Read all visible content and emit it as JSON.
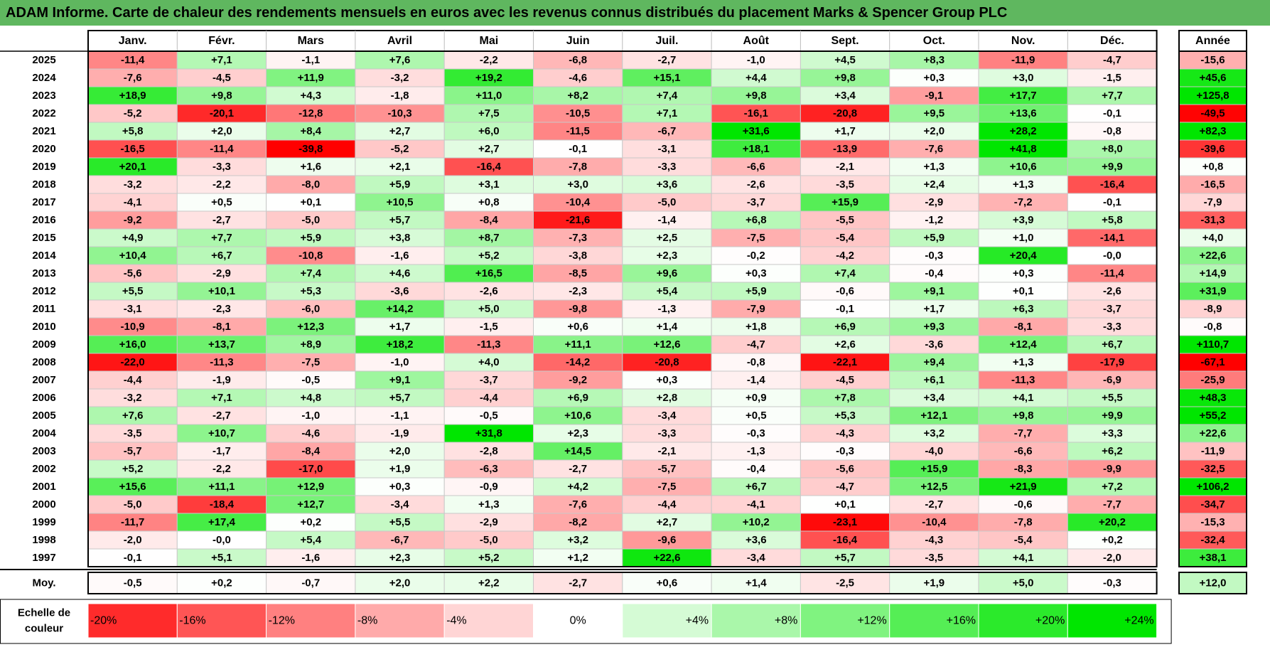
{
  "title": "ADAM Informe. Carte de chaleur des rendements mensuels en euros avec les revenus connus distribués du placement Marks & Spencer Group PLC",
  "chart_data": {
    "type": "heatmap",
    "months": [
      "Janv.",
      "Févr.",
      "Mars",
      "Avril",
      "Mai",
      "Juin",
      "Juil.",
      "Août",
      "Sept.",
      "Oct.",
      "Nov.",
      "Déc."
    ],
    "year_header": "Année",
    "avg_label": "Moy.",
    "rows": [
      {
        "year": "2025",
        "values": [
          "-11,4",
          "+7,1",
          "-1,1",
          "+7,6",
          "-2,2",
          "-6,8",
          "-2,7",
          "-1,0",
          "+4,5",
          "+8,3",
          "-11,9",
          "-4,7"
        ],
        "annual": "-15,6"
      },
      {
        "year": "2024",
        "values": [
          "-7,6",
          "-4,5",
          "+11,9",
          "-3,2",
          "+19,2",
          "-4,6",
          "+15,1",
          "+4,4",
          "+9,8",
          "+0,3",
          "+3,0",
          "-1,5"
        ],
        "annual": "+45,6"
      },
      {
        "year": "2023",
        "values": [
          "+18,9",
          "+9,8",
          "+4,3",
          "-1,8",
          "+11,0",
          "+8,2",
          "+7,4",
          "+9,8",
          "+3,4",
          "-9,1",
          "+17,7",
          "+7,7"
        ],
        "annual": "+125,8"
      },
      {
        "year": "2022",
        "values": [
          "-5,2",
          "-20,1",
          "-12,8",
          "-10,3",
          "+7,5",
          "-10,5",
          "+7,1",
          "-16,1",
          "-20,8",
          "+9,5",
          "+13,6",
          "-0,1"
        ],
        "annual": "-49,5"
      },
      {
        "year": "2021",
        "values": [
          "+5,8",
          "+2,0",
          "+8,4",
          "+2,7",
          "+6,0",
          "-11,5",
          "-6,7",
          "+31,6",
          "+1,7",
          "+2,0",
          "+28,2",
          "-0,8"
        ],
        "annual": "+82,3"
      },
      {
        "year": "2020",
        "values": [
          "-16,5",
          "-11,4",
          "-39,8",
          "-5,2",
          "+2,7",
          "-0,1",
          "-3,1",
          "+18,1",
          "-13,9",
          "-7,6",
          "+41,8",
          "+8,0"
        ],
        "annual": "-39,6"
      },
      {
        "year": "2019",
        "values": [
          "+20,1",
          "-3,3",
          "+1,6",
          "+2,1",
          "-16,4",
          "-7,8",
          "-3,3",
          "-6,6",
          "-2,1",
          "+1,3",
          "+10,6",
          "+9,9"
        ],
        "annual": "+0,8"
      },
      {
        "year": "2018",
        "values": [
          "-3,2",
          "-2,2",
          "-8,0",
          "+5,9",
          "+3,1",
          "+3,0",
          "+3,6",
          "-2,6",
          "-3,5",
          "+2,4",
          "+1,3",
          "-16,4"
        ],
        "annual": "-16,5"
      },
      {
        "year": "2017",
        "values": [
          "-4,1",
          "+0,5",
          "+0,1",
          "+10,5",
          "+0,8",
          "-10,4",
          "-5,0",
          "-3,7",
          "+15,9",
          "-2,9",
          "-7,2",
          "-0,1"
        ],
        "annual": "-7,9"
      },
      {
        "year": "2016",
        "values": [
          "-9,2",
          "-2,7",
          "-5,0",
          "+5,7",
          "-8,4",
          "-21,6",
          "-1,4",
          "+6,8",
          "-5,5",
          "-1,2",
          "+3,9",
          "+5,8"
        ],
        "annual": "-31,3"
      },
      {
        "year": "2015",
        "values": [
          "+4,9",
          "+7,7",
          "+5,9",
          "+3,8",
          "+8,7",
          "-7,3",
          "+2,5",
          "-7,5",
          "-5,4",
          "+5,9",
          "+1,0",
          "-14,1"
        ],
        "annual": "+4,0"
      },
      {
        "year": "2014",
        "values": [
          "+10,4",
          "+6,7",
          "-10,8",
          "-1,6",
          "+5,2",
          "-3,8",
          "+2,3",
          "-0,2",
          "-4,2",
          "-0,3",
          "+20,4",
          "-0,0"
        ],
        "annual": "+22,6"
      },
      {
        "year": "2013",
        "values": [
          "-5,6",
          "-2,9",
          "+7,4",
          "+4,6",
          "+16,5",
          "-8,5",
          "+9,6",
          "+0,3",
          "+7,4",
          "-0,4",
          "+0,3",
          "-11,4"
        ],
        "annual": "+14,9"
      },
      {
        "year": "2012",
        "values": [
          "+5,5",
          "+10,1",
          "+5,3",
          "-3,6",
          "-2,6",
          "-2,3",
          "+5,4",
          "+5,9",
          "-0,6",
          "+9,1",
          "+0,1",
          "-2,6"
        ],
        "annual": "+31,9"
      },
      {
        "year": "2011",
        "values": [
          "-3,1",
          "-2,3",
          "-6,0",
          "+14,2",
          "+5,0",
          "-9,8",
          "-1,3",
          "-7,9",
          "-0,1",
          "+1,7",
          "+6,3",
          "-3,7"
        ],
        "annual": "-8,9"
      },
      {
        "year": "2010",
        "values": [
          "-10,9",
          "-8,1",
          "+12,3",
          "+1,7",
          "-1,5",
          "+0,6",
          "+1,4",
          "+1,8",
          "+6,9",
          "+9,3",
          "-8,1",
          "-3,3"
        ],
        "annual": "-0,8"
      },
      {
        "year": "2009",
        "values": [
          "+16,0",
          "+13,7",
          "+8,9",
          "+18,2",
          "-11,3",
          "+11,1",
          "+12,6",
          "-4,7",
          "+2,6",
          "-3,6",
          "+12,4",
          "+6,7"
        ],
        "annual": "+110,7"
      },
      {
        "year": "2008",
        "values": [
          "-22,0",
          "-11,3",
          "-7,5",
          "-1,0",
          "+4,0",
          "-14,2",
          "-20,8",
          "-0,8",
          "-22,1",
          "+9,4",
          "+1,3",
          "-17,9"
        ],
        "annual": "-67,1"
      },
      {
        "year": "2007",
        "values": [
          "-4,4",
          "-1,9",
          "-0,5",
          "+9,1",
          "-3,7",
          "-9,2",
          "+0,3",
          "-1,4",
          "-4,5",
          "+6,1",
          "-11,3",
          "-6,9"
        ],
        "annual": "-25,9"
      },
      {
        "year": "2006",
        "values": [
          "-3,2",
          "+7,1",
          "+4,8",
          "+5,7",
          "-4,4",
          "+6,9",
          "+2,8",
          "+0,9",
          "+7,8",
          "+3,4",
          "+4,1",
          "+5,5"
        ],
        "annual": "+48,3"
      },
      {
        "year": "2005",
        "values": [
          "+7,6",
          "-2,7",
          "-1,0",
          "-1,1",
          "-0,5",
          "+10,6",
          "-3,4",
          "+0,5",
          "+5,3",
          "+12,1",
          "+9,8",
          "+9,9"
        ],
        "annual": "+55,2"
      },
      {
        "year": "2004",
        "values": [
          "-3,5",
          "+10,7",
          "-4,6",
          "-1,9",
          "+31,8",
          "+2,3",
          "-3,3",
          "-0,3",
          "-4,3",
          "+3,2",
          "-7,7",
          "+3,3"
        ],
        "annual": "+22,6"
      },
      {
        "year": "2003",
        "values": [
          "-5,7",
          "-1,7",
          "-8,4",
          "+2,0",
          "-2,8",
          "+14,5",
          "-2,1",
          "-1,3",
          "-0,3",
          "-4,0",
          "-6,6",
          "+6,2"
        ],
        "annual": "-11,9"
      },
      {
        "year": "2002",
        "values": [
          "+5,2",
          "-2,2",
          "-17,0",
          "+1,9",
          "-6,3",
          "-2,7",
          "-5,7",
          "-0,4",
          "-5,6",
          "+15,9",
          "-8,3",
          "-9,9"
        ],
        "annual": "-32,5"
      },
      {
        "year": "2001",
        "values": [
          "+15,6",
          "+11,1",
          "+12,9",
          "+0,3",
          "-0,9",
          "+4,2",
          "-7,5",
          "+6,7",
          "-4,7",
          "+12,5",
          "+21,9",
          "+7,2"
        ],
        "annual": "+106,2"
      },
      {
        "year": "2000",
        "values": [
          "-5,0",
          "-18,4",
          "+12,7",
          "-3,4",
          "+1,3",
          "-7,6",
          "-4,4",
          "-4,1",
          "+0,1",
          "-2,7",
          "-0,6",
          "-7,7"
        ],
        "annual": "-34,7"
      },
      {
        "year": "1999",
        "values": [
          "-11,7",
          "+17,4",
          "+0,2",
          "+5,5",
          "-2,9",
          "-8,2",
          "+2,7",
          "+10,2",
          "-23,1",
          "-10,4",
          "-7,8",
          "+20,2"
        ],
        "annual": "-15,3"
      },
      {
        "year": "1998",
        "values": [
          "-2,0",
          "-0,0",
          "+5,4",
          "-6,7",
          "-5,0",
          "+3,2",
          "-9,6",
          "+3,6",
          "-16,4",
          "-4,3",
          "-5,4",
          "+0,2"
        ],
        "annual": "-32,4"
      },
      {
        "year": "1997",
        "values": [
          "-0,1",
          "+5,1",
          "-1,6",
          "+2,3",
          "+5,2",
          "+1,2",
          "+22,6",
          "-3,4",
          "+5,7",
          "-3,5",
          "+4,1",
          "-2,0"
        ],
        "annual": "+38,1"
      }
    ],
    "averages": [
      "-0,5",
      "+0,2",
      "-0,7",
      "+2,0",
      "+2,2",
      "-2,7",
      "+0,6",
      "+1,4",
      "-2,5",
      "+1,9",
      "+5,0",
      "-0,3"
    ],
    "average_annual": "+12,0",
    "scale_label": "Echelle de couleur",
    "scale": [
      "-20%",
      "-16%",
      "-12%",
      "-8%",
      "-4%",
      "0%",
      "+4%",
      "+8%",
      "+12%",
      "+16%",
      "+20%",
      "+24%"
    ],
    "colors": {
      "negative": "#ff0000",
      "positive": "#00e600",
      "neutral": "#ffffff",
      "title_bar": "#5fb75f"
    }
  }
}
